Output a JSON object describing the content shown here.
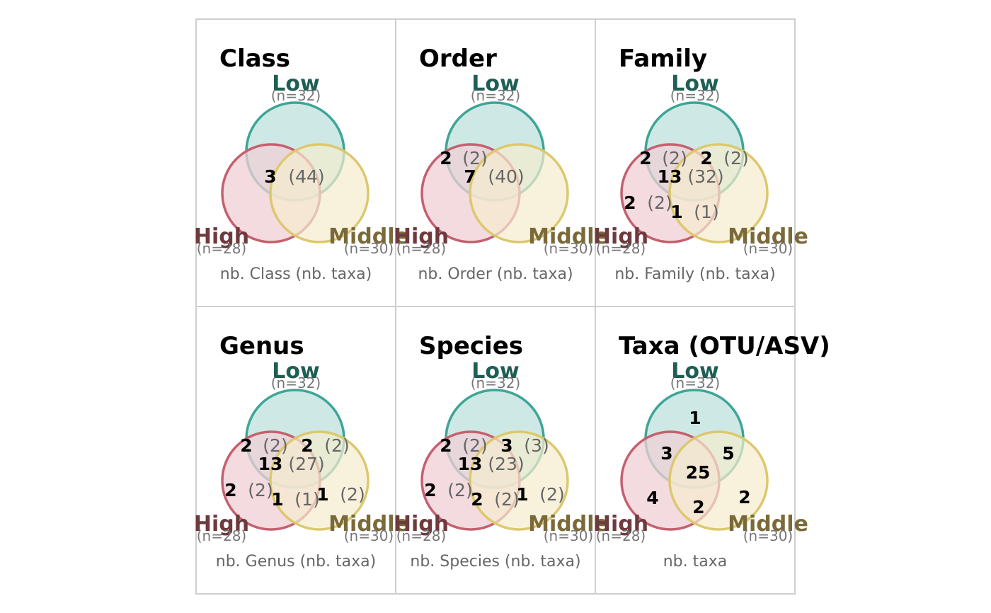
{
  "colors": {
    "low_stroke": "#3ea596",
    "low_fill": "#c5e5e0",
    "high_stroke": "#c4606f",
    "high_fill": "#efcfd6",
    "middle_stroke": "#dcc86e",
    "middle_fill": "#f5eccf",
    "low_text": "#1f5e55",
    "high_text": "#6e3a3e",
    "middle_text": "#7a6a3a",
    "frame": "#cfcfcf"
  },
  "groups": {
    "low": {
      "label": "Low",
      "n": "(n=32)"
    },
    "high": {
      "label": "High",
      "n": "(n=28)"
    },
    "middle": {
      "label": "Middle",
      "n": "(n=30)"
    }
  },
  "panels": [
    {
      "title": "Class",
      "caption": "nb. Class (nb. taxa)",
      "regions": {
        "lhm": {
          "count": "3",
          "taxa": "(44)"
        }
      }
    },
    {
      "title": "Order",
      "caption": "nb. Order (nb. taxa)",
      "regions": {
        "lh": {
          "count": "2",
          "taxa": "(2)"
        },
        "lhm": {
          "count": "7",
          "taxa": "(40)"
        }
      }
    },
    {
      "title": "Family",
      "caption": "nb. Family (nb. taxa)",
      "regions": {
        "lh": {
          "count": "2",
          "taxa": "(2)"
        },
        "lm": {
          "count": "2",
          "taxa": "(2)"
        },
        "lhm": {
          "count": "13",
          "taxa": "(32)"
        },
        "h": {
          "count": "2",
          "taxa": "(2)"
        },
        "hm": {
          "count": "1",
          "taxa": "(1)"
        }
      }
    },
    {
      "title": "Genus",
      "caption": "nb. Genus (nb. taxa)",
      "regions": {
        "lh": {
          "count": "2",
          "taxa": "(2)"
        },
        "lm": {
          "count": "2",
          "taxa": "(2)"
        },
        "lhm": {
          "count": "13",
          "taxa": "(27)"
        },
        "h": {
          "count": "2",
          "taxa": "(2)"
        },
        "hm": {
          "count": "1",
          "taxa": "(1)"
        },
        "m": {
          "count": "1",
          "taxa": "(2)"
        }
      }
    },
    {
      "title": "Species",
      "caption": "nb. Species (nb. taxa)",
      "regions": {
        "lh": {
          "count": "2",
          "taxa": "(2)"
        },
        "lm": {
          "count": "3",
          "taxa": "(3)"
        },
        "lhm": {
          "count": "13",
          "taxa": "(23)"
        },
        "h": {
          "count": "2",
          "taxa": "(2)"
        },
        "hm": {
          "count": "2",
          "taxa": "(2)"
        },
        "m": {
          "count": "1",
          "taxa": "(2)"
        }
      }
    },
    {
      "title": "Taxa (OTU/ASV)",
      "caption": "nb. taxa",
      "regions": {
        "l": {
          "count": "1"
        },
        "lh": {
          "count": "3"
        },
        "lm": {
          "count": "5"
        },
        "lhm": {
          "count": "25"
        },
        "h": {
          "count": "4"
        },
        "hm": {
          "count": "2"
        },
        "m": {
          "count": "2"
        }
      }
    }
  ]
}
